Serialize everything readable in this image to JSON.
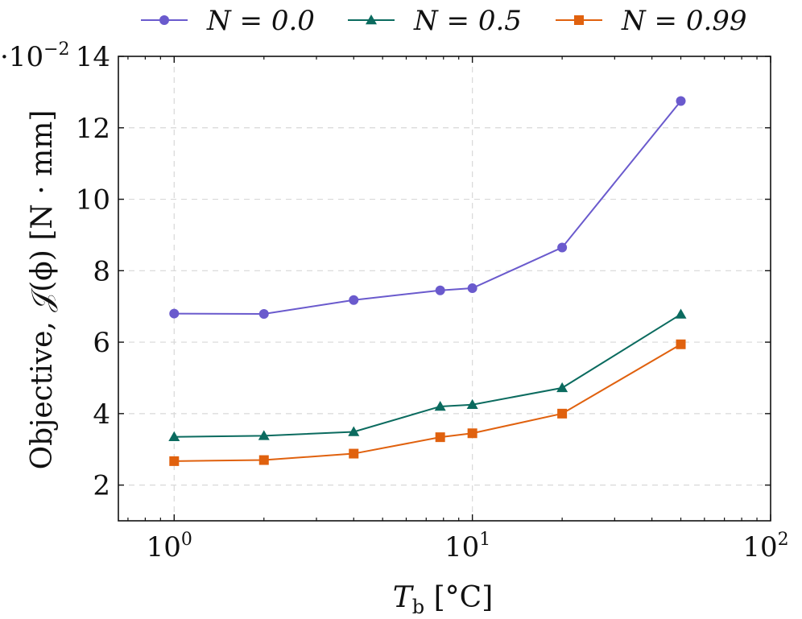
{
  "chart_data": {
    "type": "line",
    "xscale": "log",
    "xlim": [
      0.65,
      100
    ],
    "ylim": [
      1,
      14
    ],
    "x_ticks": [
      1,
      10,
      100
    ],
    "x_tick_labels": [
      {
        "base": "10",
        "exp": "0"
      },
      {
        "base": "10",
        "exp": "1"
      },
      {
        "base": "10",
        "exp": "2"
      }
    ],
    "y_ticks": [
      2,
      4,
      6,
      8,
      10,
      12,
      14
    ],
    "y_tick_labels": [
      "2",
      "4",
      "6",
      "8",
      "10",
      "12",
      "14"
    ],
    "y_multiplier": {
      "prefix": "·10",
      "exp": "−2"
    },
    "xlabel": {
      "main": "T",
      "sub": "b",
      "units": " [°C]"
    },
    "ylabel": "Objective, 𝒥(ϕ) [N · mm]",
    "grid": true,
    "legend_position": "top",
    "series": [
      {
        "name": "N = 0.0",
        "color": "#6a5acd",
        "marker": "circle",
        "x": [
          1,
          2,
          4,
          7.8,
          10,
          20,
          50
        ],
        "values": [
          6.8,
          6.79,
          7.18,
          7.45,
          7.51,
          8.65,
          12.75
        ]
      },
      {
        "name": "N = 0.5",
        "color": "#0b6b5f",
        "marker": "triangle",
        "x": [
          1,
          2,
          4,
          7.8,
          10,
          20,
          50
        ],
        "values": [
          3.35,
          3.38,
          3.49,
          4.2,
          4.25,
          4.72,
          6.78
        ]
      },
      {
        "name": "N = 0.99",
        "color": "#e0610e",
        "marker": "square",
        "x": [
          1,
          2,
          4,
          7.8,
          10,
          20,
          50
        ],
        "values": [
          2.67,
          2.7,
          2.88,
          3.34,
          3.45,
          4.0,
          5.94
        ]
      }
    ]
  }
}
